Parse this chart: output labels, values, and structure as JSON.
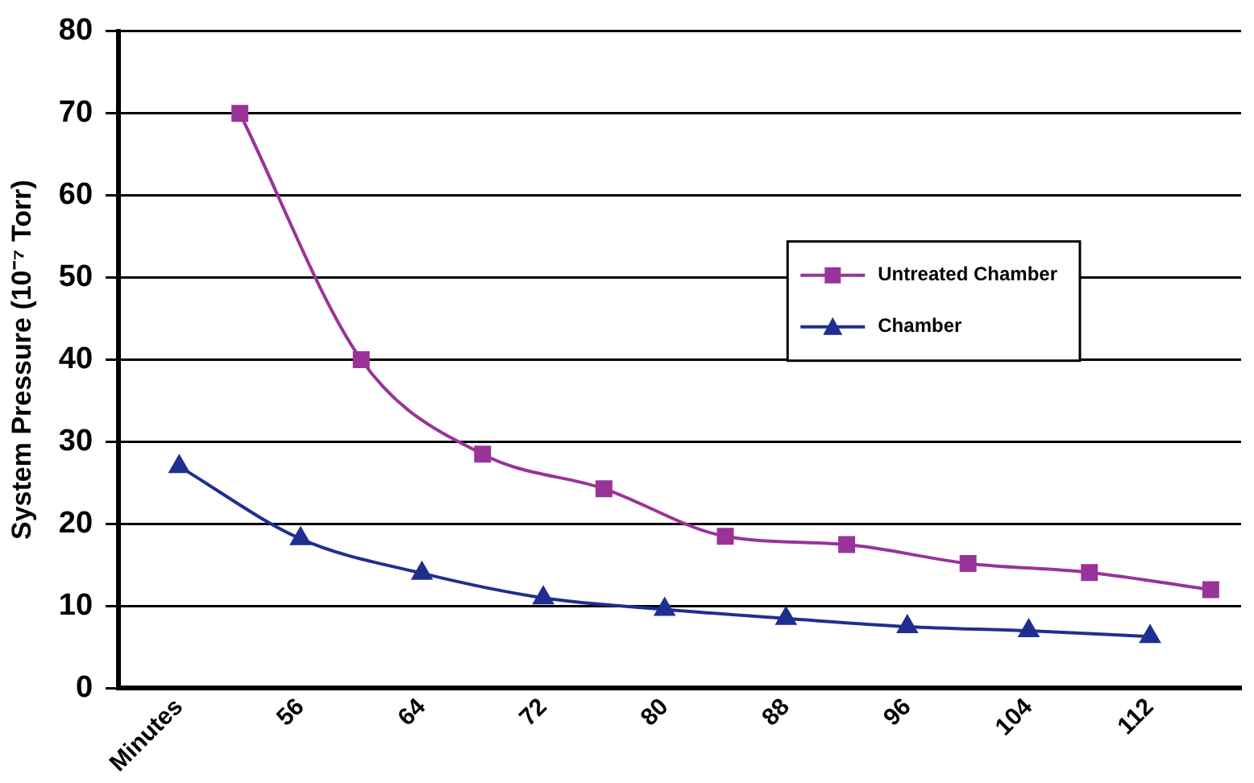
{
  "chart_data": {
    "type": "line",
    "ylabel": "System Pressure (10⁻⁷ Torr)",
    "xlim": [
      44,
      118
    ],
    "xticks": [
      {
        "value": 48,
        "label": "Minutes"
      },
      56,
      64,
      72,
      80,
      88,
      96,
      104,
      112
    ],
    "ylim": [
      0,
      80
    ],
    "yticks": [
      0,
      10,
      20,
      30,
      40,
      50,
      60,
      70,
      80
    ],
    "grid": "y",
    "legend": "right",
    "line_style": "solid",
    "series": [
      {
        "name": "Untreated Chamber",
        "color": "#993399",
        "marker": "square",
        "x": [
          52,
          60,
          68,
          76,
          84,
          92,
          100,
          108,
          116
        ],
        "values": [
          70,
          40,
          28.5,
          24.3,
          18.5,
          17.5,
          15.2,
          14.1,
          12
        ]
      },
      {
        "name": "Chamber",
        "color": "#1f2f8f",
        "marker": "triangle",
        "x": [
          48,
          56,
          64,
          72,
          80,
          88,
          96,
          104,
          112
        ],
        "values": [
          27,
          18.2,
          14,
          11,
          9.6,
          8.5,
          7.5,
          7,
          6.3
        ]
      }
    ]
  }
}
